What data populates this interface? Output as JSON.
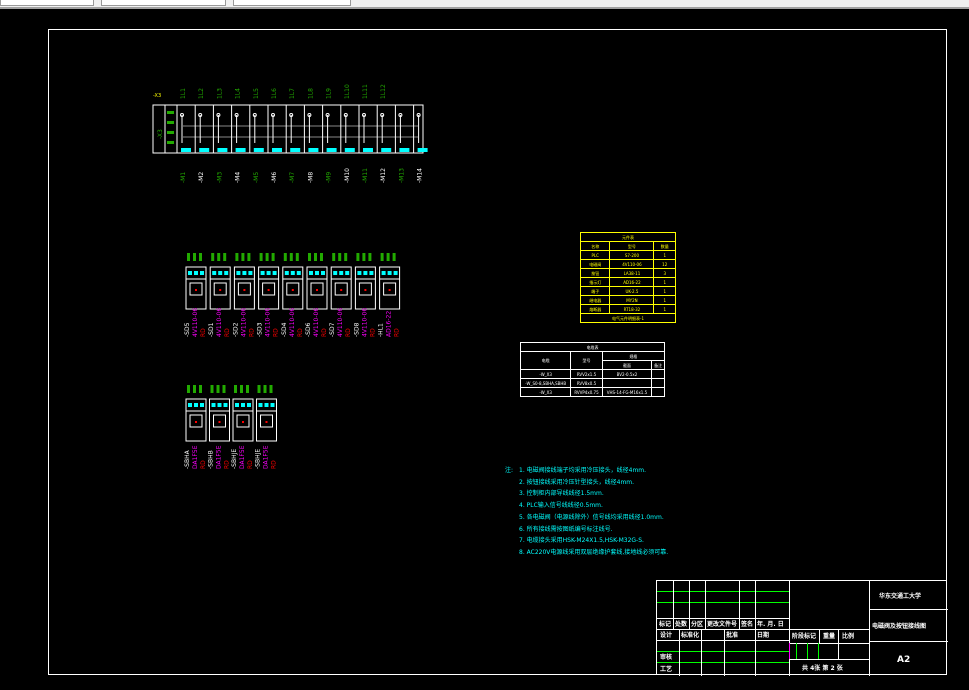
{
  "window": {
    "toolbar_fields": [
      "",
      "",
      ""
    ]
  },
  "drawing": {
    "terminal_strip": {
      "tag": "-X3",
      "side_label": "-X3",
      "wire_labels_top": [
        "1L1",
        "1L2",
        "1L3",
        "1L4",
        "1L5",
        "1L6",
        "1L7",
        "1L8",
        "1L9",
        "1L10",
        "1L11",
        "1L12"
      ],
      "wire_labels_bottom": [
        "-M1",
        "-M2",
        "-M3",
        "-M4",
        "-M5",
        "-M6",
        "-M7",
        "-M8",
        "-M9",
        "-M10",
        "-M11",
        "-M12",
        "-M13",
        "-M14"
      ]
    },
    "valves_row1": [
      {
        "tag": "-SD5",
        "model": "4V110-06",
        "color_code": "RD"
      },
      {
        "tag": "-SD1",
        "model": "4V110-06",
        "color_code": "RD"
      },
      {
        "tag": "-SD2",
        "model": "4V110-06",
        "color_code": "RD"
      },
      {
        "tag": "-SD3",
        "model": "4V110-06",
        "color_code": "RD"
      },
      {
        "tag": "-SD4",
        "model": "4V110-06",
        "color_code": "RD"
      },
      {
        "tag": "-SD6",
        "model": "4V110-06",
        "color_code": "RD"
      },
      {
        "tag": "-SD7",
        "model": "4V110-06",
        "color_code": "RD"
      },
      {
        "tag": "-SD8",
        "model": "4V110-06",
        "color_code": "RD"
      },
      {
        "tag": "-HL1",
        "model": "AD16-22",
        "color_code": "RD"
      }
    ],
    "valves_row2": [
      {
        "tag": "-SBHA",
        "model": "DA1F5E",
        "color_code": "RD"
      },
      {
        "tag": "-SBHB",
        "model": "DA1F5E",
        "color_code": "RD"
      },
      {
        "tag": "-SBHJE",
        "model": "DA1F5E",
        "color_code": "RD"
      },
      {
        "tag": "-SBHJE",
        "model": "DA1F5E",
        "color_code": "RD"
      }
    ],
    "parts_table": {
      "title": "元件表",
      "headers": [
        "名称",
        "型号",
        "数量"
      ],
      "rows": [
        [
          "PLC",
          "S7-200",
          "1"
        ],
        [
          "电磁阀",
          "4V110-06",
          "12"
        ],
        [
          "按钮",
          "LA38-11",
          "3"
        ],
        [
          "指示灯",
          "AD16-22",
          "1"
        ],
        [
          "端子",
          "UK-2.5",
          "1"
        ],
        [
          "继电器",
          "MY2N",
          "1"
        ],
        [
          "熔断器",
          "RT18-32",
          "1"
        ]
      ],
      "footer": "电气元件明细表-1"
    },
    "cable_table": {
      "title": "电缆表",
      "headers": [
        "电缆",
        "型号",
        "规格"
      ],
      "subheaders": [
        "截面",
        "备注"
      ],
      "rows": [
        [
          "-W_X3",
          "RVV2x1.5",
          "BV2-0.5x2"
        ],
        [
          "-W_S0-8,SBHA,SBHB",
          "RVV8x0.5",
          ""
        ],
        [
          "-W_X3",
          "RVVP4x0.75",
          "VHS-14-FG-M16x1.5"
        ]
      ]
    },
    "notes": {
      "heading": "注:",
      "items": [
        "1. 电磁阀接线端子均采用冷压接头，线径4mm.",
        "2. 按钮接线采用冷压针型接头，线径4mm.",
        "3. 控制柜内部导线线径1.5mm.",
        "4. PLC输入信号线线径0.5mm.",
        "5. 各电磁阀（电源线除外）信号线均采用线径1.0mm.",
        "6. 所有接线需按图纸编号标注线号.",
        "7. 电缆接头采用HSK-M24X1.5,HSK-M32G-S.",
        "8. AC220V电源线采用双层绝缘护套线,接地线必须可靠."
      ]
    },
    "title_block": {
      "school": "华东交通工大学",
      "drawing_title": "电磁阀及按钮接线图",
      "labels": [
        "标记",
        "处数",
        "分区",
        "更改文件号",
        "签名",
        "年. 月. 日",
        "设计",
        "标准化",
        "批准",
        "日期",
        "审核",
        "工艺"
      ],
      "stage_mark": "阶段标记",
      "weight": "重量",
      "scale": "比例",
      "sheets": "共 4张  第 2 张",
      "size": "A2"
    }
  },
  "colors": {
    "frame": "#ffffff",
    "wire_label": "#22aa00",
    "terminal": "#00ffff",
    "tag": "#ff00ff",
    "alarm": "#ff0000",
    "table": "#ffff00",
    "notes": "#00ffff"
  }
}
